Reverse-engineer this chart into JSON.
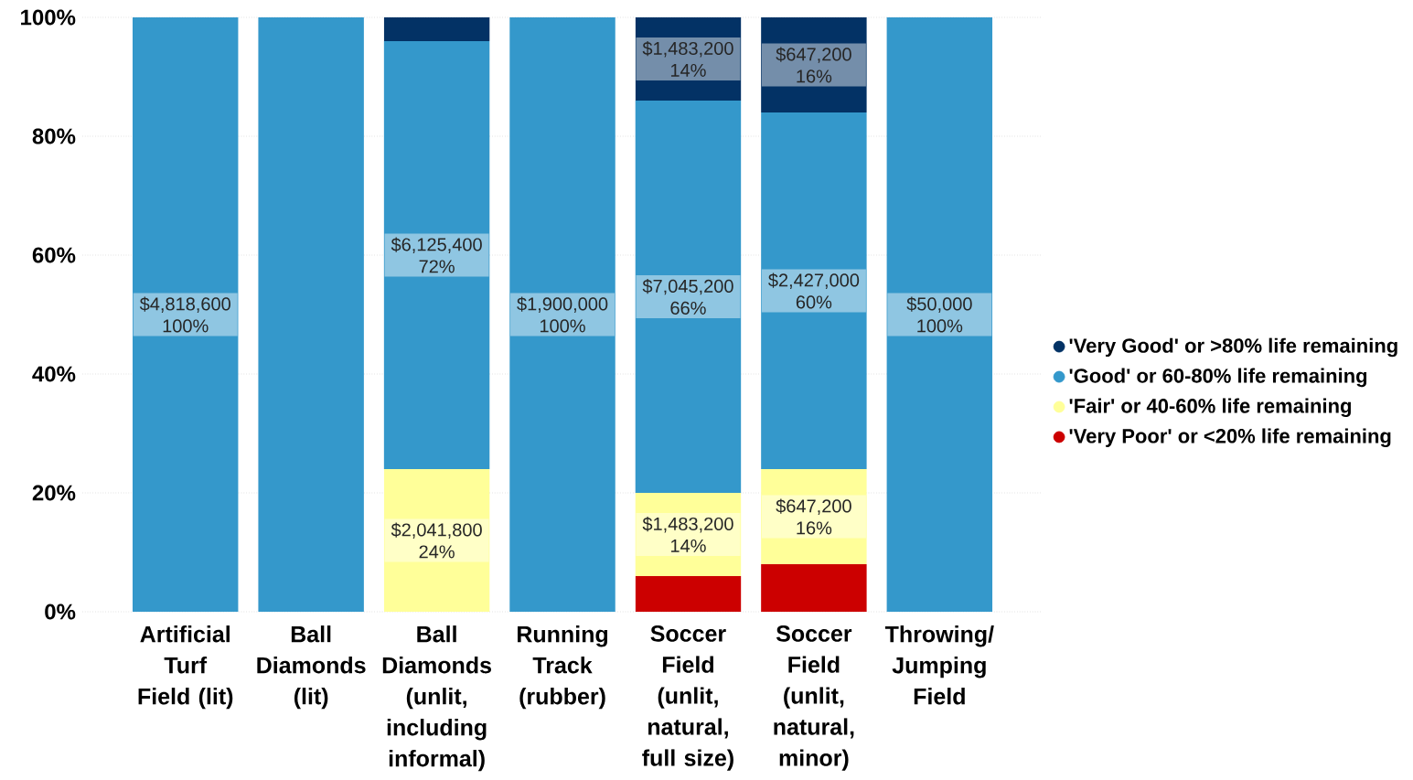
{
  "chart_data": {
    "type": "bar",
    "stacked": true,
    "categories": [
      "Artificial Turf Field (lit)",
      "Ball Diamonds (lit)",
      "Ball Diamonds (unlit, including informal)",
      "Running Track (rubber)",
      "Soccer Field (unlit, natural, full size)",
      "Soccer Field (unlit, natural, minor)",
      "Throwing/ Jumping Field"
    ],
    "series": [
      {
        "name": "'Very Poor' or <20% life remaining",
        "color": "#cc0000",
        "values": [
          null,
          null,
          null,
          null,
          6,
          8,
          null
        ],
        "value_labels": [
          null,
          null,
          null,
          null,
          null,
          null,
          null
        ]
      },
      {
        "name": "'Fair' or 40-60% life remaining",
        "color": "#ffff99",
        "values": [
          null,
          null,
          24,
          null,
          14,
          16,
          null
        ],
        "value_labels": [
          null,
          null,
          "$2,041,800 24%",
          null,
          "$1,483,200 14%",
          "$647,200 16%",
          null
        ]
      },
      {
        "name": "'Good' or 60-80% life remaining",
        "color": "#3498cb",
        "values": [
          100,
          100,
          72,
          100,
          66,
          60,
          100
        ],
        "value_labels": [
          "$4,818,600 100%",
          null,
          "$6,125,400 72%",
          "$1,900,000 100%",
          "$7,045,200 66%",
          "$2,427,000 60%",
          "$50,000 100%"
        ]
      },
      {
        "name": "'Very Good' or >80% life remaining",
        "color": "#033265",
        "values": [
          null,
          null,
          4,
          null,
          14,
          16,
          null
        ],
        "value_labels": [
          null,
          null,
          null,
          null,
          "$1,483,200 14%",
          "$647,200 16%",
          null
        ]
      }
    ],
    "ylim": [
      0,
      100
    ],
    "yticks": [
      {
        "value": 0,
        "label": "0%"
      },
      {
        "value": 20,
        "label": "20%"
      },
      {
        "value": 40,
        "label": "40%"
      },
      {
        "value": 60,
        "label": "60%"
      },
      {
        "value": 80,
        "label": "80%"
      },
      {
        "value": 100,
        "label": "100%"
      }
    ],
    "grid": "y",
    "legend": "right"
  }
}
